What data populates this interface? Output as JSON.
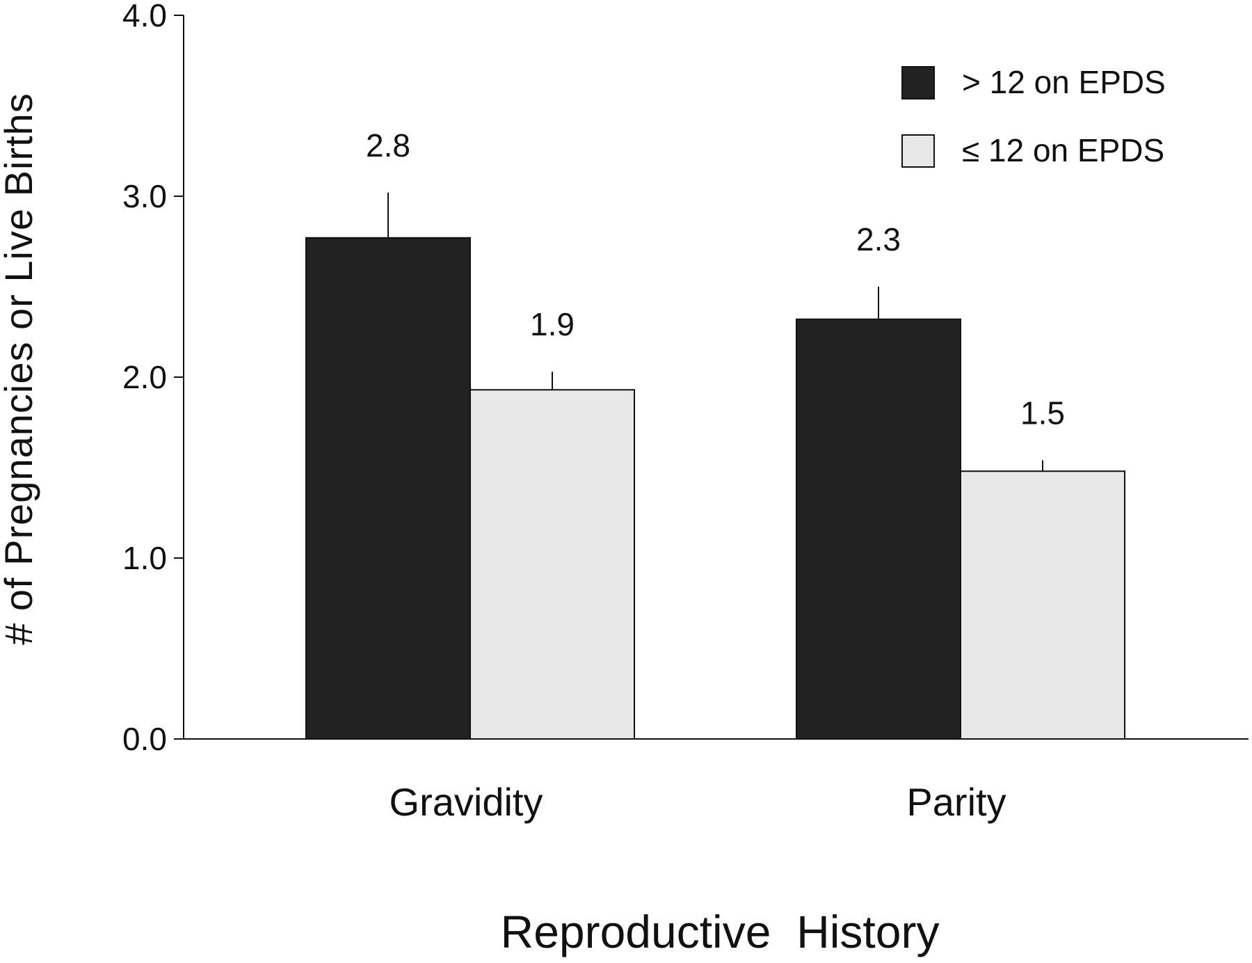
{
  "chart_data": {
    "type": "bar",
    "xlabel": "Reproductive  History",
    "ylabel": "# of Pregnancies or Live Births",
    "ylim": [
      0,
      4
    ],
    "yticks": [
      "0.0",
      "1.0",
      "2.0",
      "3.0",
      "4.0"
    ],
    "ytick_values": [
      0,
      1,
      2,
      3,
      4
    ],
    "categories": [
      "Gravidity",
      "Parity"
    ],
    "series": [
      {
        "name": "> 12 on EPDS",
        "color": "#222222",
        "values": [
          2.77,
          2.32
        ],
        "error": [
          0.25,
          0.18
        ],
        "data_labels": [
          "2.8",
          "2.3"
        ]
      },
      {
        "name": "≤ 12 on EPDS",
        "color": "#e8e8e8",
        "values": [
          1.93,
          1.48
        ],
        "error": [
          0.1,
          0.06
        ],
        "data_labels": [
          "1.9",
          "1.5"
        ]
      }
    ],
    "legend_position": "top-right",
    "grid": false
  }
}
